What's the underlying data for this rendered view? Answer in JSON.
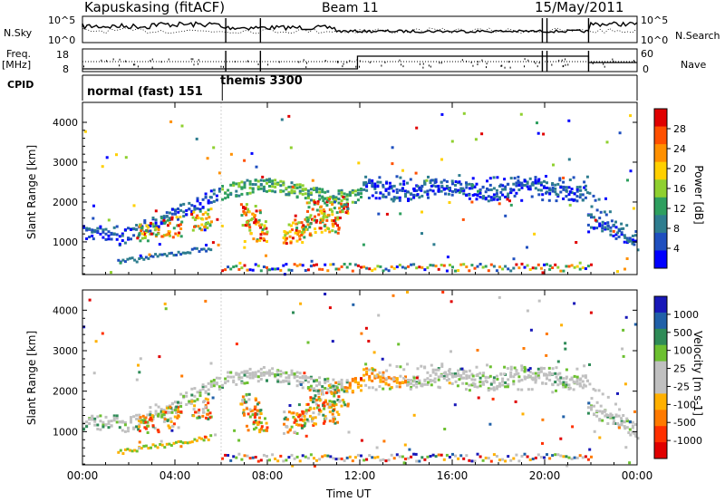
{
  "header": {
    "station": "Kapuskasing (fitACF)",
    "beam": "Beam 11",
    "date": "15/May/2011"
  },
  "side_labels": {
    "nsky": "N.Sky",
    "nsearch": "N.Search",
    "freq": "Freq.",
    "mhz": "[MHz]",
    "nave": "Nave",
    "cpid": "CPID"
  },
  "small_axes": {
    "noise_left": [
      "10^5",
      "10^0"
    ],
    "noise_right": [
      "10^5",
      "10^0"
    ],
    "freq_left": [
      "18",
      "8"
    ],
    "freq_right": [
      "60",
      "0"
    ]
  },
  "cpid_labels": {
    "first": "normal (fast) 151",
    "second": "themis 3300"
  },
  "colors": {
    "power": [
      "#0000ff",
      "#1f4fbf",
      "#2e7d8f",
      "#2e9f5f",
      "#8fd02f",
      "#ffd000",
      "#ff9000",
      "#ff5000",
      "#e00000"
    ],
    "velocity": [
      "#1818b8",
      "#2060a8",
      "#2e8b57",
      "#6cc030",
      "#c0c0c0",
      "#c0c0c0",
      "#ffb000",
      "#ff7a00",
      "#ff3000",
      "#e00000"
    ]
  },
  "chart_data": [
    {
      "type": "heatmap",
      "title": "Power",
      "ylabel": "Slant Range [km]",
      "xlabel": "",
      "colorbar_label": "Power [dB]",
      "colorbar_ticks": [
        "28",
        "24",
        "20",
        "16",
        "12",
        "8",
        "4"
      ],
      "x_ticks": [
        "00:00",
        "04:00",
        "08:00",
        "12:00",
        "16:00",
        "20:00",
        "00:00"
      ],
      "y_ticks": [
        "1000",
        "2000",
        "3000",
        "4000"
      ],
      "xlim": [
        0,
        24
      ],
      "ylim": [
        180,
        4500
      ],
      "series": [
        {
          "values": [
            [
              0.0,
              1400,
              4
            ],
            [
              0.5,
              1300,
              6
            ],
            [
              1.0,
              1250,
              8
            ],
            [
              2.5,
              1100,
              10
            ],
            [
              3.5,
              1500,
              16
            ],
            [
              4.0,
              1900,
              12
            ],
            [
              5.0,
              2300,
              8
            ],
            [
              6.5,
              2500,
              4
            ],
            [
              7.0,
              1600,
              20
            ],
            [
              7.5,
              1400,
              24
            ],
            [
              9.0,
              1300,
              16
            ],
            [
              10.0,
              1600,
              20
            ],
            [
              11.0,
              1900,
              12
            ],
            [
              13.0,
              2300,
              8
            ],
            [
              15.0,
              2400,
              6
            ],
            [
              17.0,
              2300,
              8
            ],
            [
              19.0,
              2500,
              4
            ],
            [
              21.5,
              2450,
              4
            ],
            [
              22.5,
              1500,
              8
            ],
            [
              23.5,
              1200,
              4
            ]
          ]
        }
      ]
    },
    {
      "type": "heatmap",
      "title": "Velocity",
      "ylabel": "Slant Range [km]",
      "xlabel": "Time UT",
      "colorbar_label": "Velocity [m s-1]",
      "colorbar_ticks": [
        "1000",
        "500",
        "100",
        "25",
        "-25",
        "-100",
        "-500",
        "-1000"
      ],
      "x_ticks": [
        "00:00",
        "04:00",
        "08:00",
        "12:00",
        "16:00",
        "20:00",
        "00:00"
      ],
      "y_ticks": [
        "1000",
        "2000",
        "3000",
        "4000"
      ],
      "xlim": [
        0,
        24
      ],
      "ylim": [
        180,
        4500
      ],
      "series": [
        {
          "values": [
            [
              1.0,
              1400,
              0
            ],
            [
              3.0,
              1200,
              -100
            ],
            [
              4.0,
              1500,
              100
            ],
            [
              7.0,
              1600,
              -100
            ],
            [
              9.0,
              1300,
              -500
            ],
            [
              10.0,
              1700,
              -100
            ],
            [
              12.5,
              2300,
              -500
            ],
            [
              14.0,
              2500,
              100
            ],
            [
              16.0,
              2300,
              0
            ],
            [
              19.0,
              2400,
              0
            ],
            [
              22.5,
              1500,
              0
            ]
          ]
        }
      ]
    }
  ]
}
